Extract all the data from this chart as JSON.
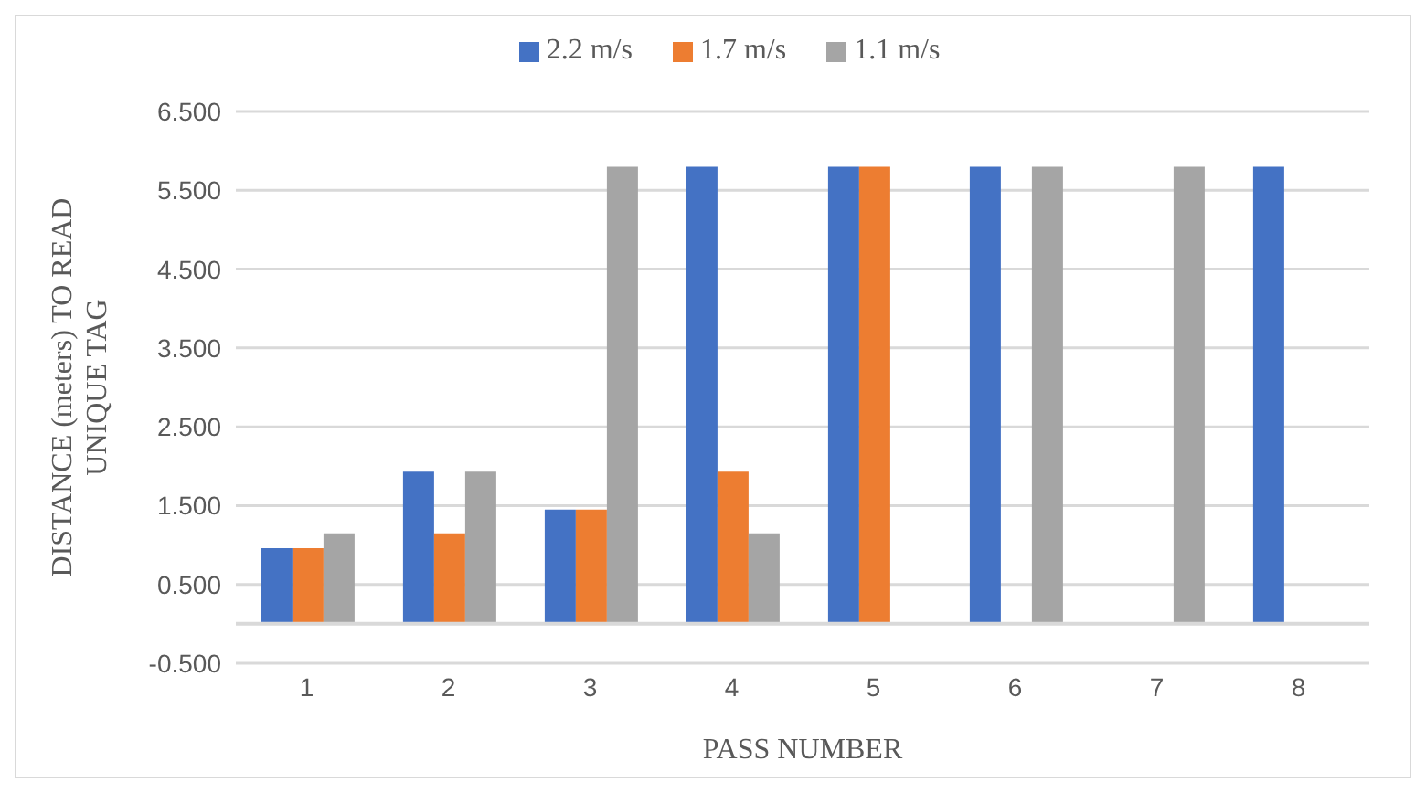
{
  "chart_data": {
    "type": "bar",
    "xlabel": "PASS NUMBER",
    "ylabel": "DISTANCE (meters) TO READ UNIQUE TAG",
    "categories": [
      "1",
      "2",
      "3",
      "4",
      "5",
      "6",
      "7",
      "8"
    ],
    "series": [
      {
        "name": "2.2 m/s",
        "color": "#4472c4",
        "values": [
          0.96,
          1.93,
          1.45,
          5.8,
          5.8,
          5.8,
          null,
          5.8
        ]
      },
      {
        "name": "1.7 m/s",
        "color": "#ed7d31",
        "values": [
          0.96,
          1.15,
          1.45,
          1.93,
          5.8,
          null,
          null,
          null
        ]
      },
      {
        "name": "1.1 m/s",
        "color": "#a5a5a5",
        "values": [
          1.15,
          1.93,
          5.8,
          1.15,
          null,
          5.8,
          5.8,
          null
        ]
      }
    ],
    "ylim": [
      -0.5,
      6.5
    ],
    "yticks": [
      {
        "value": -0.5,
        "label": "-0.500"
      },
      {
        "value": 0.5,
        "label": "0.500"
      },
      {
        "value": 1.5,
        "label": "1.500"
      },
      {
        "value": 2.5,
        "label": "2.500"
      },
      {
        "value": 3.5,
        "label": "3.500"
      },
      {
        "value": 4.5,
        "label": "4.500"
      },
      {
        "value": 5.5,
        "label": "5.500"
      },
      {
        "value": 6.5,
        "label": "6.500"
      }
    ],
    "grid": "y",
    "legend": "top"
  }
}
